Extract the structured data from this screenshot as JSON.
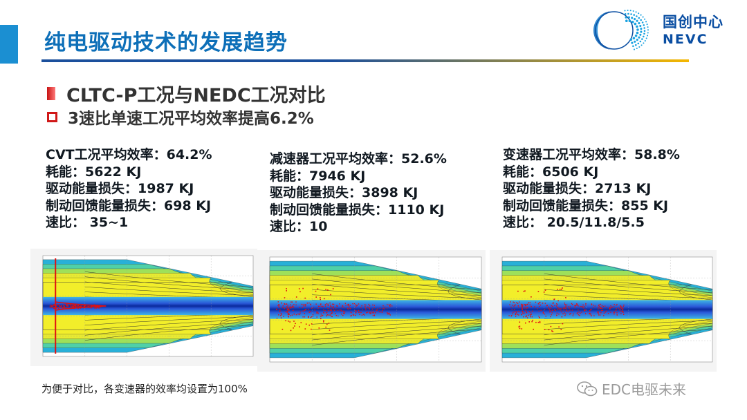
{
  "title": "纯电驱动技术的发展趋势",
  "logo": {
    "cn": "国创中心",
    "en": "NEVC"
  },
  "bullet1": "CLTC-P工况与NEDC工况对比",
  "bullet2": "3速比单速工况平均效率提高6.2%",
  "columns": [
    {
      "lines": [
        "CVT工况平均效率：64.2%",
        "耗能：5622 KJ",
        "驱动能量损失：1987 KJ",
        "制动回馈能量损失：698 KJ",
        "速比：  35~1"
      ]
    },
    {
      "lines": [
        "减速器工况平均效率：52.6%",
        "耗能：7946 KJ",
        "驱动能量损失：3898 KJ",
        "制动回馈能量损失：1110 KJ",
        "速比：10"
      ]
    },
    {
      "lines": [
        "变速器工况平均效率：58.8%",
        "耗能：6506 KJ",
        "驱动能量损失：2713 KJ",
        "制动回馈能量损失：855 KJ",
        "速比： 20.5/11.8/5.5"
      ]
    }
  ],
  "footnote": "为便于对比，各变速器的效率均设置为100%",
  "watermark": "EDC电驱未来",
  "colors": {
    "title": "#0d6fb8",
    "accent_bar": "#1b8fd2",
    "bullet_red": "#d01818",
    "plot_yellow": "#f2ee2a",
    "plot_band": "#2a58d8",
    "operating_points": "#e01010"
  },
  "icons": {
    "logo_mark": "nevc-globe-logo-icon",
    "watermark_icon": "wechat-icon"
  }
}
